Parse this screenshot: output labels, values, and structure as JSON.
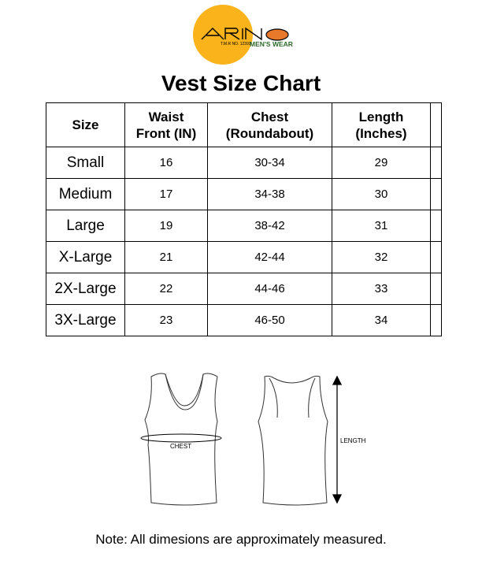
{
  "logo": {
    "brand": "ARINO",
    "trademark": "T.M.R NO. 12391",
    "tagline": "MEN'S WEAR",
    "circle_color": "#FBB31B",
    "accent_color": "#E8782A",
    "tagline_color": "#2E6B2A"
  },
  "title": "Vest Size Chart",
  "table": {
    "headers": [
      [
        "Size"
      ],
      [
        "Waist",
        "Front (IN)"
      ],
      [
        "Chest",
        "(Roundabout)"
      ],
      [
        "Length",
        "(Inches)"
      ],
      [
        ""
      ]
    ],
    "rows": [
      [
        "Small",
        "16",
        "30-34",
        "29"
      ],
      [
        "Medium",
        "17",
        "34-38",
        "30"
      ],
      [
        "Large",
        "19",
        "38-42",
        "31"
      ],
      [
        "X-Large",
        "21",
        "42-44",
        "32"
      ],
      [
        "2X-Large",
        "22",
        "44-46",
        "33"
      ],
      [
        "3X-Large",
        "23",
        "46-50",
        "34"
      ]
    ]
  },
  "diagram": {
    "chest_label": "CHEST",
    "length_label": "LENGTH"
  },
  "note": "Note: All dimesions are approximately measured."
}
